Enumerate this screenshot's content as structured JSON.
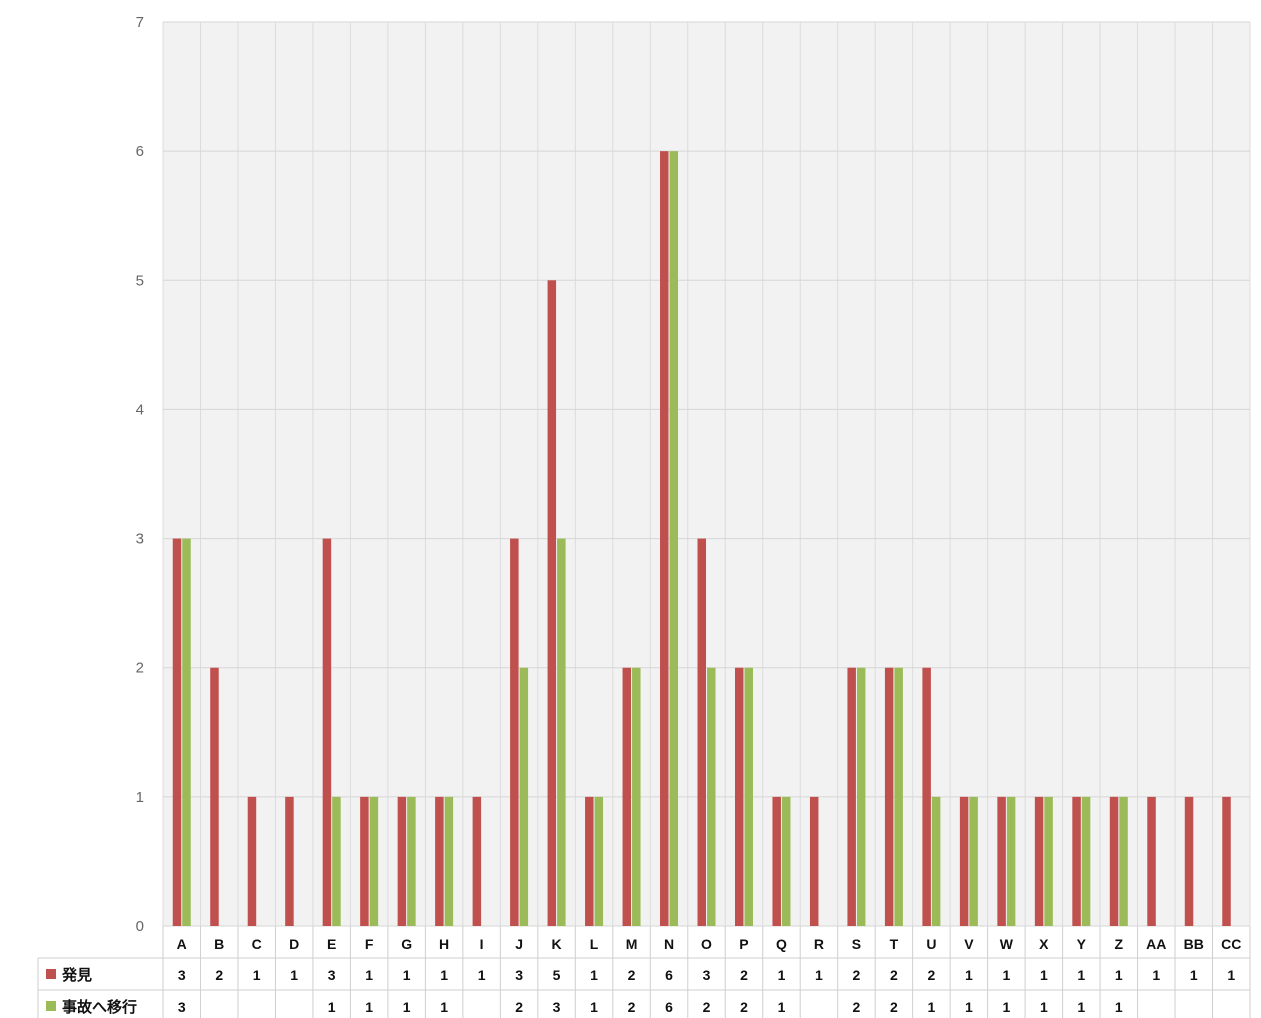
{
  "chart_data": {
    "type": "bar",
    "categories": [
      "A",
      "B",
      "C",
      "D",
      "E",
      "F",
      "G",
      "H",
      "I",
      "J",
      "K",
      "L",
      "M",
      "N",
      "O",
      "P",
      "Q",
      "R",
      "S",
      "T",
      "U",
      "V",
      "W",
      "X",
      "Y",
      "Z",
      "AA",
      "BB",
      "CC"
    ],
    "series": [
      {
        "name": "発見",
        "color": "#c0504d",
        "values": [
          3,
          2,
          1,
          1,
          3,
          1,
          1,
          1,
          1,
          3,
          5,
          1,
          2,
          6,
          3,
          2,
          1,
          1,
          2,
          2,
          2,
          1,
          1,
          1,
          1,
          1,
          1,
          1,
          1
        ]
      },
      {
        "name": "事故へ移行",
        "color": "#9bbb59",
        "values": [
          3,
          null,
          null,
          null,
          1,
          1,
          1,
          1,
          null,
          2,
          3,
          1,
          2,
          6,
          2,
          2,
          1,
          null,
          2,
          2,
          1,
          1,
          1,
          1,
          1,
          1,
          null,
          null,
          null
        ]
      }
    ],
    "ylim": [
      0,
      7
    ],
    "yticks": [
      "0",
      "1",
      "2",
      "3",
      "4",
      "5",
      "6",
      "7"
    ],
    "grid": true,
    "legend": "data-table-left",
    "data_table": true
  }
}
